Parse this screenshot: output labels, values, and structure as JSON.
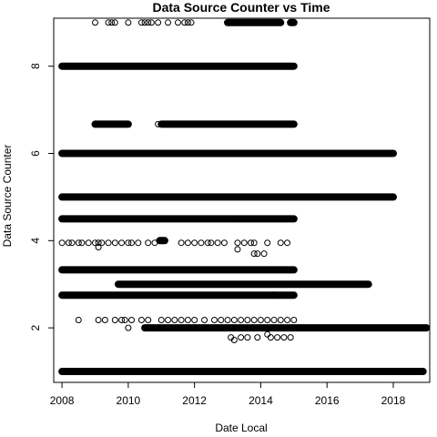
{
  "chart_data": {
    "type": "scatter",
    "title": "Data Source Counter vs Time",
    "xlabel": "Date Local",
    "ylabel": "Data Source Counter",
    "xlim": [
      2007.75,
      2019.1
    ],
    "ylim": [
      0.75,
      9.1
    ],
    "x_ticks": [
      2008,
      2010,
      2012,
      2014,
      2016,
      2018
    ],
    "y_ticks": [
      2,
      4,
      6,
      8
    ],
    "x_tick_labels": [
      "2008",
      "2010",
      "2012",
      "2014",
      "2016",
      "2018"
    ],
    "y_tick_labels": [
      "2",
      "4",
      "6",
      "8"
    ],
    "grid": false,
    "legend": "none",
    "marker": "open-circle",
    "dense_bands": [
      {
        "y": 9.0,
        "x_start": 2013.0,
        "x_end": 2014.6
      },
      {
        "y": 9.0,
        "x_start": 2014.9,
        "x_end": 2015.0
      },
      {
        "y": 8.0,
        "x_start": 2008.0,
        "x_end": 2015.0
      },
      {
        "y": 6.67,
        "x_start": 2009.0,
        "x_end": 2010.0
      },
      {
        "y": 6.67,
        "x_start": 2011.0,
        "x_end": 2015.0
      },
      {
        "y": 6.0,
        "x_start": 2008.0,
        "x_end": 2018.0
      },
      {
        "y": 5.0,
        "x_start": 2008.0,
        "x_end": 2018.0
      },
      {
        "y": 4.5,
        "x_start": 2008.0,
        "x_end": 2015.0
      },
      {
        "y": 4.0,
        "x_start": 2010.95,
        "x_end": 2011.1
      },
      {
        "y": 3.33,
        "x_start": 2008.0,
        "x_end": 2015.0
      },
      {
        "y": 3.0,
        "x_start": 2009.7,
        "x_end": 2017.25
      },
      {
        "y": 2.75,
        "x_start": 2008.0,
        "x_end": 2014.4
      },
      {
        "y": 2.75,
        "x_start": 2014.4,
        "x_end": 2015.0
      },
      {
        "y": 2.0,
        "x_start": 2010.5,
        "x_end": 2019.0
      },
      {
        "y": 1.0,
        "x_start": 2008.0,
        "x_end": 2018.9
      }
    ],
    "sparse_points": [
      {
        "x": 2009.0,
        "y": 9.0
      },
      {
        "x": 2009.4,
        "y": 9.0
      },
      {
        "x": 2009.5,
        "y": 9.0
      },
      {
        "x": 2009.6,
        "y": 9.0
      },
      {
        "x": 2010.0,
        "y": 9.0
      },
      {
        "x": 2010.4,
        "y": 9.0
      },
      {
        "x": 2010.5,
        "y": 9.0
      },
      {
        "x": 2010.6,
        "y": 9.0
      },
      {
        "x": 2010.7,
        "y": 9.0
      },
      {
        "x": 2010.9,
        "y": 9.0
      },
      {
        "x": 2011.2,
        "y": 9.0
      },
      {
        "x": 2011.5,
        "y": 9.0
      },
      {
        "x": 2011.7,
        "y": 9.0
      },
      {
        "x": 2011.8,
        "y": 9.0
      },
      {
        "x": 2011.9,
        "y": 9.0
      },
      {
        "x": 2010.9,
        "y": 6.67
      },
      {
        "x": 2008.0,
        "y": 3.95
      },
      {
        "x": 2008.2,
        "y": 3.95
      },
      {
        "x": 2008.3,
        "y": 3.95
      },
      {
        "x": 2008.5,
        "y": 3.95
      },
      {
        "x": 2008.6,
        "y": 3.95
      },
      {
        "x": 2008.8,
        "y": 3.95
      },
      {
        "x": 2009.0,
        "y": 3.95
      },
      {
        "x": 2009.1,
        "y": 3.95
      },
      {
        "x": 2009.2,
        "y": 3.95
      },
      {
        "x": 2009.4,
        "y": 3.95
      },
      {
        "x": 2009.6,
        "y": 3.95
      },
      {
        "x": 2009.8,
        "y": 3.95
      },
      {
        "x": 2010.0,
        "y": 3.95
      },
      {
        "x": 2010.1,
        "y": 3.95
      },
      {
        "x": 2010.3,
        "y": 3.95
      },
      {
        "x": 2010.6,
        "y": 3.95
      },
      {
        "x": 2010.8,
        "y": 3.95
      },
      {
        "x": 2011.6,
        "y": 3.95
      },
      {
        "x": 2011.8,
        "y": 3.95
      },
      {
        "x": 2012.0,
        "y": 3.95
      },
      {
        "x": 2012.2,
        "y": 3.95
      },
      {
        "x": 2012.4,
        "y": 3.95
      },
      {
        "x": 2012.5,
        "y": 3.95
      },
      {
        "x": 2012.7,
        "y": 3.95
      },
      {
        "x": 2012.9,
        "y": 3.95
      },
      {
        "x": 2013.3,
        "y": 3.95
      },
      {
        "x": 2013.5,
        "y": 3.95
      },
      {
        "x": 2013.7,
        "y": 3.95
      },
      {
        "x": 2013.8,
        "y": 3.95
      },
      {
        "x": 2014.2,
        "y": 3.95
      },
      {
        "x": 2014.6,
        "y": 3.95
      },
      {
        "x": 2014.8,
        "y": 3.95
      },
      {
        "x": 2009.1,
        "y": 3.85
      },
      {
        "x": 2013.3,
        "y": 3.8
      },
      {
        "x": 2013.8,
        "y": 3.7
      },
      {
        "x": 2013.9,
        "y": 3.7
      },
      {
        "x": 2014.1,
        "y": 3.7
      },
      {
        "x": 2008.5,
        "y": 2.18
      },
      {
        "x": 2009.1,
        "y": 2.18
      },
      {
        "x": 2009.3,
        "y": 2.18
      },
      {
        "x": 2009.6,
        "y": 2.18
      },
      {
        "x": 2009.8,
        "y": 2.18
      },
      {
        "x": 2009.9,
        "y": 2.18
      },
      {
        "x": 2010.1,
        "y": 2.18
      },
      {
        "x": 2010.4,
        "y": 2.18
      },
      {
        "x": 2010.6,
        "y": 2.18
      },
      {
        "x": 2011.0,
        "y": 2.18
      },
      {
        "x": 2011.2,
        "y": 2.18
      },
      {
        "x": 2011.4,
        "y": 2.18
      },
      {
        "x": 2011.6,
        "y": 2.18
      },
      {
        "x": 2011.8,
        "y": 2.18
      },
      {
        "x": 2012.0,
        "y": 2.18
      },
      {
        "x": 2012.3,
        "y": 2.18
      },
      {
        "x": 2012.6,
        "y": 2.18
      },
      {
        "x": 2012.8,
        "y": 2.18
      },
      {
        "x": 2013.0,
        "y": 2.18
      },
      {
        "x": 2013.2,
        "y": 2.18
      },
      {
        "x": 2013.4,
        "y": 2.18
      },
      {
        "x": 2013.6,
        "y": 2.18
      },
      {
        "x": 2013.8,
        "y": 2.18
      },
      {
        "x": 2014.0,
        "y": 2.18
      },
      {
        "x": 2014.2,
        "y": 2.18
      },
      {
        "x": 2014.4,
        "y": 2.18
      },
      {
        "x": 2014.6,
        "y": 2.18
      },
      {
        "x": 2014.8,
        "y": 2.18
      },
      {
        "x": 2015.0,
        "y": 2.18
      },
      {
        "x": 2010.0,
        "y": 2.0
      },
      {
        "x": 2013.1,
        "y": 1.78
      },
      {
        "x": 2013.2,
        "y": 1.72
      },
      {
        "x": 2013.4,
        "y": 1.78
      },
      {
        "x": 2013.6,
        "y": 1.78
      },
      {
        "x": 2013.9,
        "y": 1.78
      },
      {
        "x": 2014.2,
        "y": 1.85
      },
      {
        "x": 2014.3,
        "y": 1.78
      },
      {
        "x": 2014.5,
        "y": 1.78
      },
      {
        "x": 2014.7,
        "y": 1.78
      },
      {
        "x": 2014.9,
        "y": 1.78
      }
    ]
  }
}
